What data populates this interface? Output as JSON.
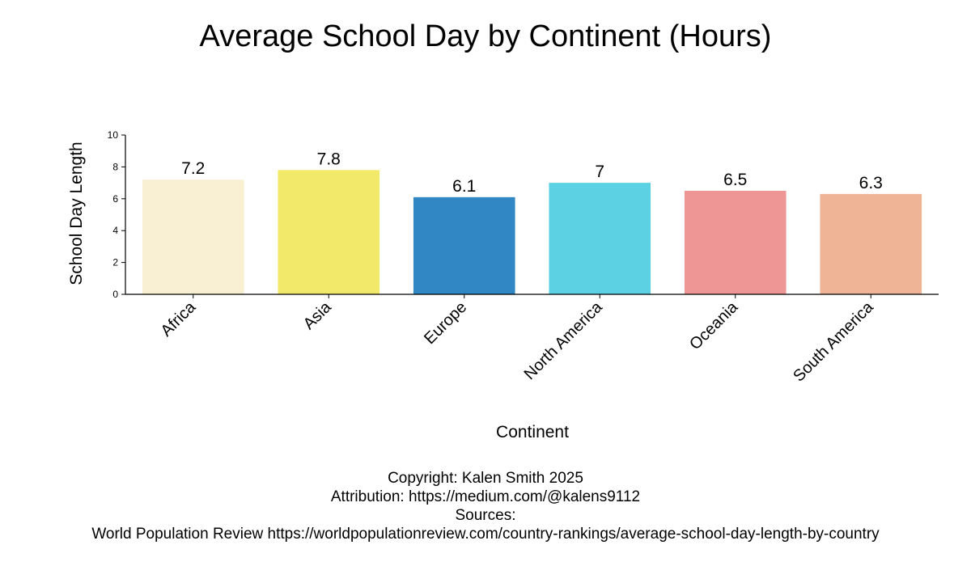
{
  "chart_data": {
    "type": "bar",
    "title": "Average School Day by Continent (Hours)",
    "xlabel": "Continent",
    "ylabel": "School Day Length",
    "categories": [
      "Africa",
      "Asia",
      "Europe",
      "North America",
      "Oceania",
      "South America"
    ],
    "values": [
      7.2,
      7.8,
      6.1,
      7,
      6.5,
      6.3
    ],
    "value_labels": [
      "7.2",
      "7.8",
      "6.1",
      "7",
      "6.5",
      "6.3"
    ],
    "colors": [
      "#F9EFD2",
      "#F2E86A",
      "#3087C3",
      "#5CD1E3",
      "#EE9595",
      "#EFB496"
    ],
    "ylim": [
      0,
      10
    ],
    "yticks": [
      0,
      2,
      4,
      6,
      8,
      10
    ],
    "grid": false,
    "legend": "none"
  },
  "footer": {
    "copyright": "Copyright: Kalen Smith 2025",
    "attribution": "Attribution: https://medium.com/@kalens9112",
    "sources_label": "Sources:",
    "source": "World Population Review https://worldpopulationreview.com/country-rankings/average-school-day-length-by-country"
  }
}
